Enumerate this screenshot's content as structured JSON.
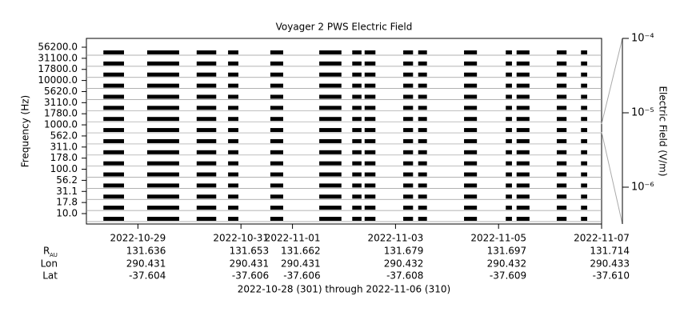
{
  "chart_data": {
    "type": "segments",
    "title": "Voyager 2 PWS Electric Field",
    "y_label": "Frequency (Hz)",
    "y2_label": "Electric Field (V/m)",
    "footer": "2022-10-28 (301) through 2022-11-06 (310)",
    "categories": [
      "10.0",
      "17.8",
      "31.1",
      "56.2",
      "100.0",
      "178.0",
      "311.0",
      "562.0",
      "1000.0",
      "1780.0",
      "3110.0",
      "5620.0",
      "10000.0",
      "17800.0",
      "31100.0",
      "56200.0"
    ],
    "xlim": [
      301,
      311
    ],
    "xticks": [
      {
        "value": 302,
        "label": "2022-10-29"
      },
      {
        "value": 304,
        "label": "2022-10-31"
      },
      {
        "value": 305,
        "label": "2022-11-01"
      },
      {
        "value": 307,
        "label": "2022-11-03"
      },
      {
        "value": 309,
        "label": "2022-11-05"
      },
      {
        "value": 311,
        "label": "2022-11-07"
      }
    ],
    "color": "#000000",
    "segments": [
      [
        301.33,
        301.73
      ],
      [
        302.18,
        302.8
      ],
      [
        303.14,
        303.52
      ],
      [
        303.75,
        303.95
      ],
      [
        304.57,
        304.82
      ],
      [
        305.52,
        305.95
      ],
      [
        306.16,
        306.34
      ],
      [
        306.4,
        306.61
      ],
      [
        307.15,
        307.34
      ],
      [
        307.44,
        307.61
      ],
      [
        308.33,
        308.58
      ],
      [
        309.14,
        309.26
      ],
      [
        309.35,
        309.6
      ],
      [
        310.13,
        310.32
      ],
      [
        310.6,
        310.72
      ]
    ],
    "y2_log": true,
    "y2lim": [
      3.2e-07,
      0.0001
    ],
    "y2ticks": [
      {
        "value": 0.0001,
        "label": "10⁻⁴"
      },
      {
        "value": 1e-05,
        "label": "10⁻⁵"
      },
      {
        "value": 1e-06,
        "label": "10⁻⁶"
      }
    ],
    "ephemeris": [
      {
        "label": "R",
        "sub": "AU",
        "values": [
          "131.636",
          "131.653",
          "131.662",
          "131.679",
          "131.697",
          "131.714"
        ]
      },
      {
        "label": "Lon",
        "values": [
          "290.431",
          "290.431",
          "290.431",
          "290.432",
          "290.432",
          "290.433"
        ]
      },
      {
        "label": "Lat",
        "values": [
          "-37.604",
          "-37.606",
          "-37.606",
          "-37.608",
          "-37.609",
          "-37.610"
        ]
      }
    ]
  }
}
